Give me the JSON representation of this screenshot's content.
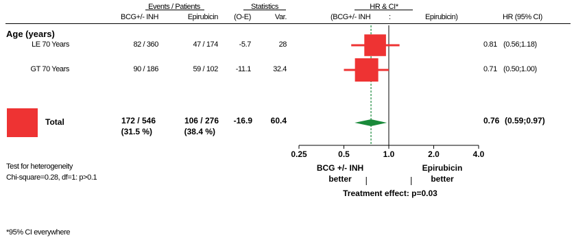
{
  "headers": {
    "events_patients": "Events / Patients",
    "statistics": "Statistics",
    "hr_ci": "HR & CI*",
    "col_bcg": "BCG+/- INH",
    "col_epi": "Epirubicin",
    "col_oe": "(O-E)",
    "col_var": "Var.",
    "plot_bcg": "(BCG+/- INH",
    "plot_colon": ":",
    "plot_epi": "Epirubicin)",
    "col_hr": "HR (95% CI)"
  },
  "group_label": "Age (years)",
  "rows": [
    {
      "label": "LE 70 Years",
      "bcg": "82 / 360",
      "epi": "47 / 174",
      "oe": "-5.7",
      "var": "28",
      "hr_text": "0.81",
      "ci_text": "(0.56;1.18)"
    },
    {
      "label": "GT 70 Years",
      "bcg": "90 / 186",
      "epi": "59 / 102",
      "oe": "-11.1",
      "var": "32.4",
      "hr_text": "0.71",
      "ci_text": "(0.50;1.00)"
    }
  ],
  "total": {
    "label": "Total",
    "bcg": "172 / 546",
    "bcg_pct": "(31.5 %)",
    "epi": "106 / 276",
    "epi_pct": "(38.4 %)",
    "oe": "-16.9",
    "var": "60.4",
    "hr_text": "0.76",
    "ci_text": "(0.59;0.97)"
  },
  "heterogeneity": {
    "line1": "Test for heterogeneity",
    "line2": "Chi-square=0.28, df=1: p>0.1"
  },
  "favour": {
    "left_1": "BCG +/- INH",
    "left_2": "better",
    "right_1": "Epirubicin",
    "right_2": "better"
  },
  "treatment_effect": "Treatment effect: p=0.03",
  "footnote": "*95% CI everywhere",
  "colors": {
    "square": "#ee3333",
    "diamond": "#1a8a3a",
    "overall_line": "#1a8a3a"
  },
  "chart_data": {
    "type": "forest",
    "x_scale": "log",
    "xlim": [
      0.25,
      4.0
    ],
    "ticks": [
      0.25,
      0.5,
      1.0,
      2.0,
      4.0
    ],
    "tick_labels": [
      "0.25",
      "0.5",
      "1.0",
      "2.0",
      "4.0"
    ],
    "null_value": 1.0,
    "overall_reference": 0.76,
    "studies": [
      {
        "label": "LE 70 Years",
        "hr": 0.81,
        "ci_low": 0.56,
        "ci_high": 1.18,
        "weight": 28
      },
      {
        "label": "GT 70 Years",
        "hr": 0.71,
        "ci_low": 0.5,
        "ci_high": 1.0,
        "weight": 32.4
      }
    ],
    "overall": {
      "label": "Total",
      "hr": 0.76,
      "ci_low": 0.59,
      "ci_high": 0.97
    }
  }
}
